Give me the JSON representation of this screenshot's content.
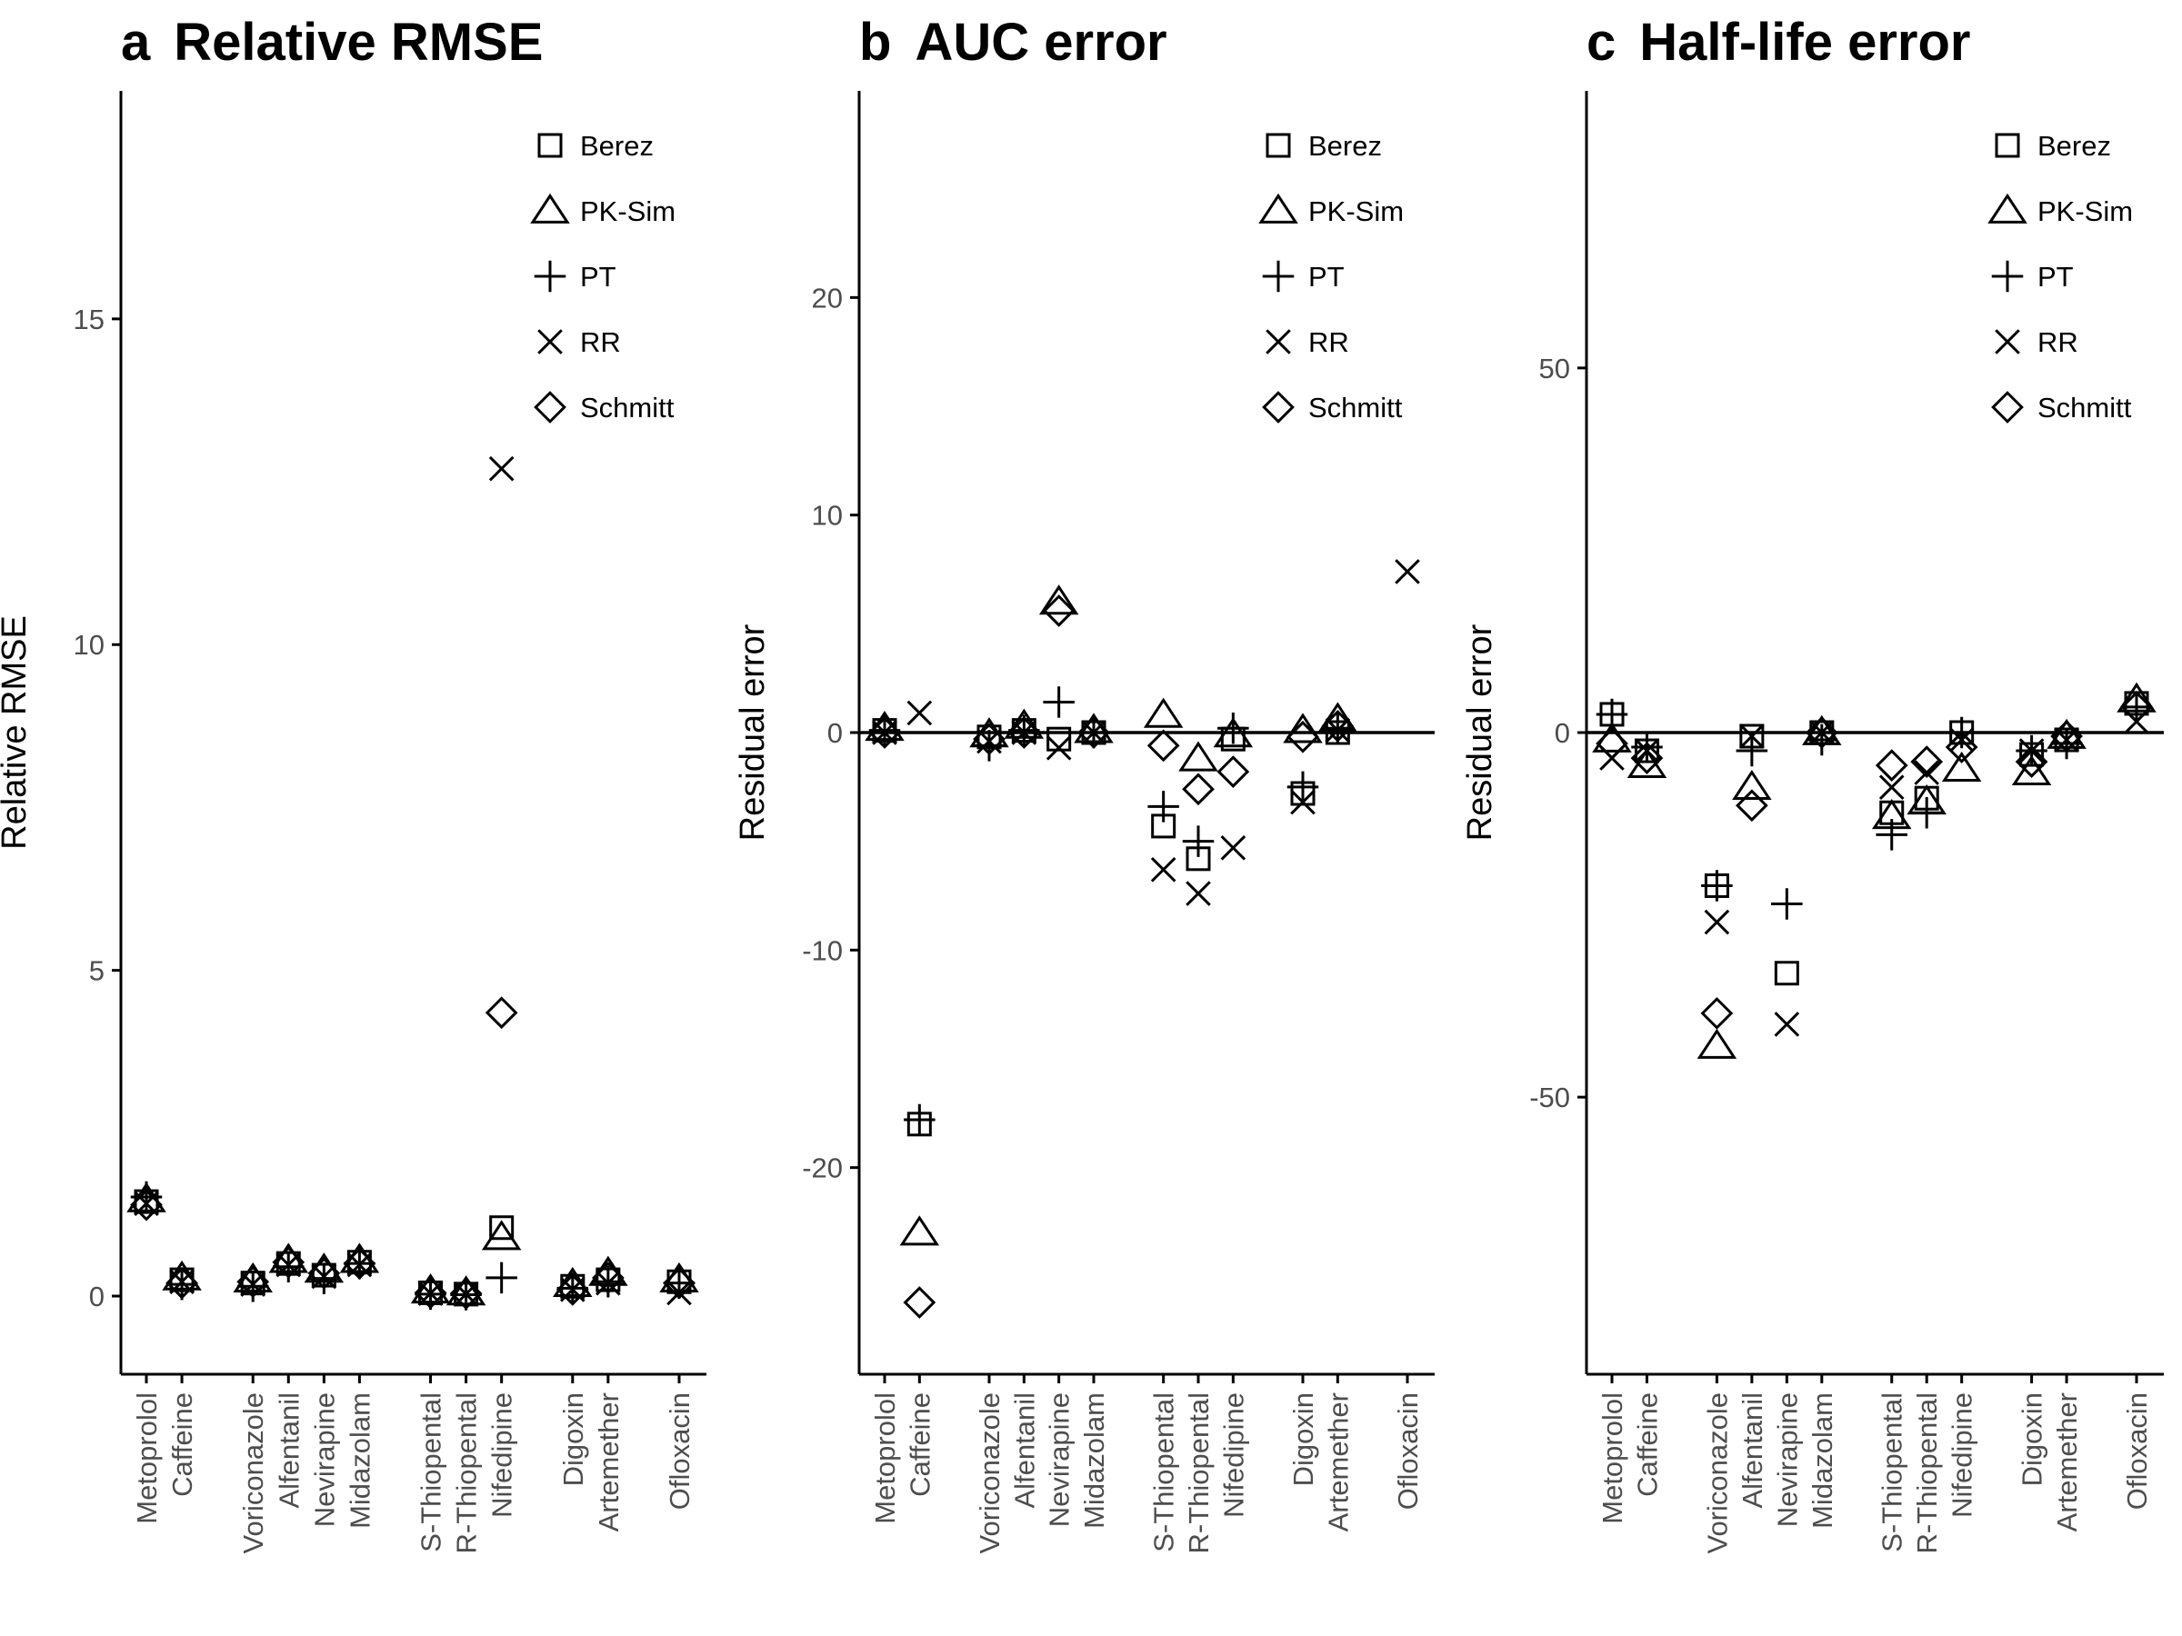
{
  "colors": {
    "ink": "#000000",
    "tick_label": "#4d4d4d",
    "background": "#ffffff"
  },
  "legend_entries": [
    {
      "name": "Berez",
      "shape": "square"
    },
    {
      "name": "PK-Sim",
      "shape": "triangle"
    },
    {
      "name": "PT",
      "shape": "plus"
    },
    {
      "name": "RR",
      "shape": "cross"
    },
    {
      "name": "Schmitt",
      "shape": "diamond"
    }
  ],
  "drugs": [
    "Metoprolol",
    "Caffeine",
    "Voriconazole",
    "Alfentanil",
    "Nevirapine",
    "Midazolam",
    "S-Thiopental",
    "R-Thiopental",
    "Nifedipine",
    "Digoxin",
    "Artemether",
    "Ofloxacin"
  ],
  "chart_data": [
    {
      "panel": "a",
      "type": "scatter",
      "title": "Relative RMSE",
      "xlabel": "",
      "ylabel": "Relative RMSE",
      "ylim": [
        -1.2,
        18.5
      ],
      "yticks": [
        0,
        5,
        10,
        15
      ],
      "zero_line": false,
      "legend": "top-right",
      "grid": false,
      "series": [
        {
          "name": "Berez",
          "values": [
            1.45,
            0.25,
            0.2,
            0.5,
            0.32,
            0.52,
            0.05,
            0.03,
            1.05,
            0.15,
            0.25,
            0.22
          ]
        },
        {
          "name": "PK-Sim",
          "values": [
            1.48,
            0.28,
            0.25,
            0.55,
            0.4,
            0.55,
            0.08,
            0.05,
            0.9,
            0.18,
            0.35,
            0.25
          ]
        },
        {
          "name": "PT",
          "values": [
            1.52,
            0.18,
            0.15,
            0.45,
            0.27,
            0.5,
            0.03,
            0.02,
            0.28,
            0.12,
            0.22,
            0.2
          ]
        },
        {
          "name": "RR",
          "values": [
            1.42,
            0.22,
            0.18,
            0.48,
            0.3,
            0.48,
            0.04,
            0.03,
            12.7,
            0.1,
            0.2,
            0.05
          ]
        },
        {
          "name": "Schmitt",
          "values": [
            1.4,
            0.2,
            0.22,
            0.52,
            0.35,
            0.5,
            0.05,
            0.04,
            4.35,
            0.1,
            0.28,
            0.2
          ]
        }
      ]
    },
    {
      "panel": "b",
      "type": "scatter",
      "title": "AUC error",
      "xlabel": "",
      "ylabel": "Residual error",
      "ylim": [
        -29.5,
        29.5
      ],
      "yticks": [
        -20,
        -10,
        0,
        10,
        20
      ],
      "zero_line": true,
      "legend": "top-right",
      "grid": false,
      "series": [
        {
          "name": "Berez",
          "values": [
            0.1,
            -18,
            -0.2,
            0.1,
            -0.3,
            0,
            -4.3,
            -5.8,
            -0.3,
            -2.8,
            0,
            null
          ]
        },
        {
          "name": "PK-Sim",
          "values": [
            0.2,
            -23,
            -0.1,
            0.3,
            6.0,
            0.1,
            0.8,
            -1.2,
            -0.1,
            0.1,
            0.6,
            null
          ]
        },
        {
          "name": "PT",
          "values": [
            0.1,
            -17.8,
            -0.6,
            0.1,
            1.4,
            0,
            -3.4,
            -5.0,
            0.2,
            -2.5,
            0.2,
            null
          ]
        },
        {
          "name": "RR",
          "values": [
            0,
            0.9,
            -0.4,
            0,
            -0.7,
            0,
            -6.3,
            -7.4,
            -5.3,
            -3.2,
            0.1,
            7.4
          ]
        },
        {
          "name": "Schmitt",
          "values": [
            0,
            -26.2,
            -0.3,
            0,
            5.6,
            0,
            -0.6,
            -2.6,
            -1.8,
            -0.2,
            0.3,
            null
          ]
        }
      ]
    },
    {
      "panel": "c",
      "type": "scatter",
      "title": "Half-life error",
      "xlabel": "",
      "ylabel": "Residual error",
      "ylim": [
        -88,
        88
      ],
      "yticks": [
        -50,
        0,
        50
      ],
      "zero_line": true,
      "legend": "top-right",
      "grid": false,
      "series": [
        {
          "name": "Berez",
          "values": [
            2.5,
            -2.5,
            -21,
            -0.5,
            -33,
            0,
            -11,
            -9,
            0,
            -3,
            -1,
            4
          ]
        },
        {
          "name": "PK-Sim",
          "values": [
            -1,
            -4.5,
            -43,
            -7.5,
            null,
            0,
            -11.5,
            -9.5,
            -5,
            -5.5,
            -0.5,
            4.5
          ]
        },
        {
          "name": "PT",
          "values": [
            2.5,
            -2,
            -21,
            -2.5,
            -23.5,
            -1,
            -14,
            -11,
            0,
            -2.5,
            -1.5,
            3.5
          ]
        },
        {
          "name": "RR",
          "values": [
            -3.5,
            -2.5,
            -26,
            -0.5,
            -40,
            0,
            -7.5,
            -5.5,
            -1,
            -2.5,
            -1,
            1.5
          ]
        },
        {
          "name": "Schmitt",
          "values": [
            -1.5,
            -3.5,
            -38.5,
            -10,
            null,
            0,
            -4.5,
            -4,
            -2,
            -4,
            -0.5,
            3.5
          ]
        }
      ]
    }
  ]
}
